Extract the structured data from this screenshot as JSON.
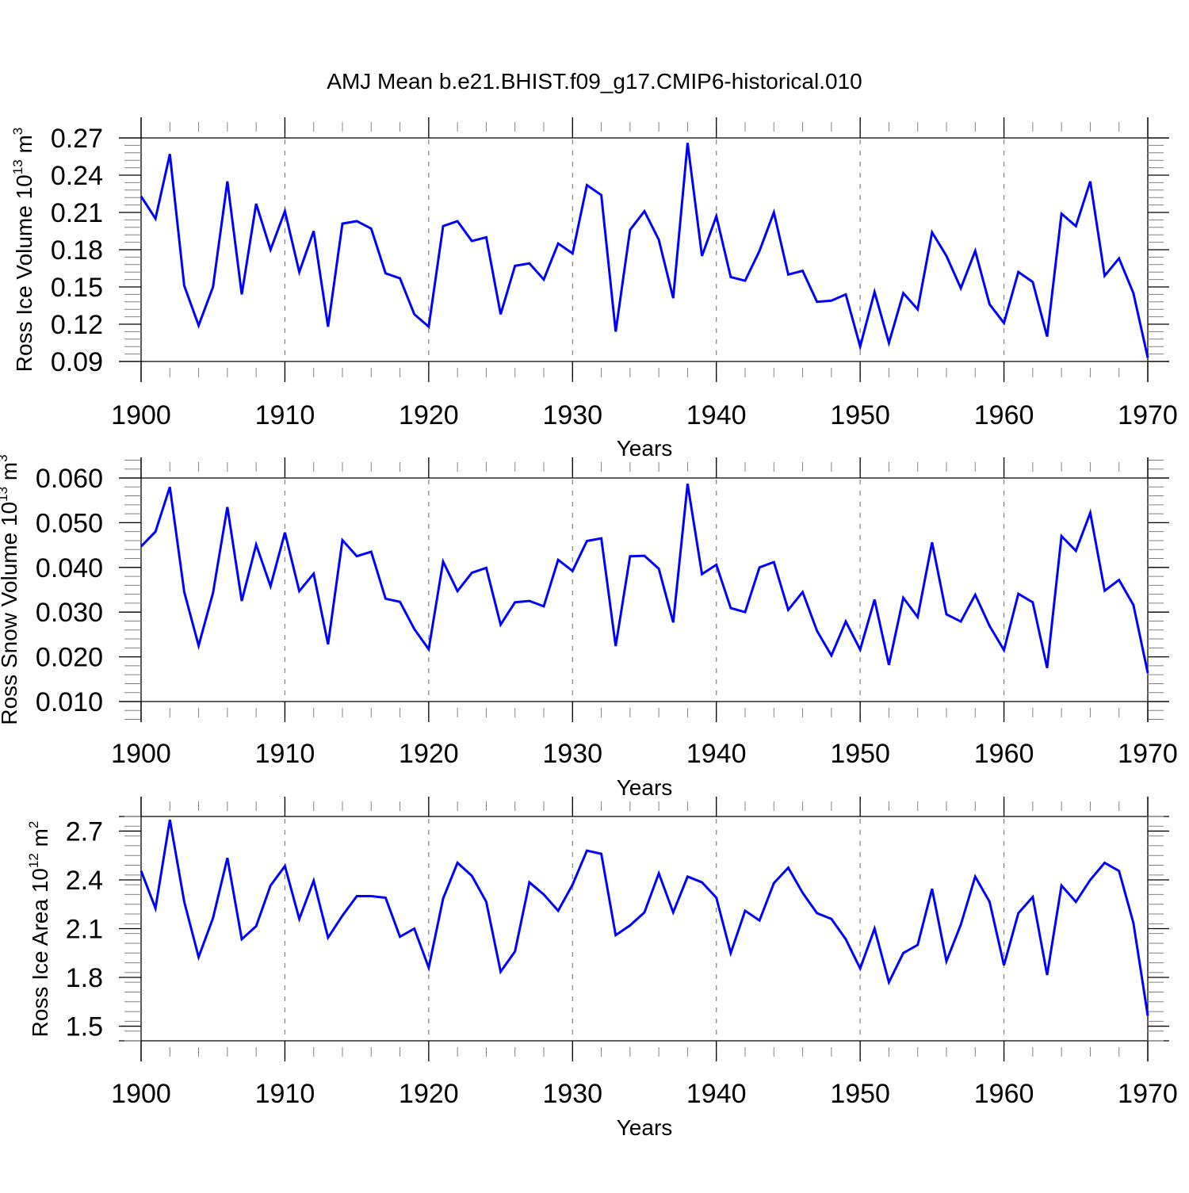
{
  "title": "AMJ Mean b.e21.BHIST.f09_g17.CMIP6-historical.010",
  "colors": {
    "line": "#0000ff",
    "axis": "#000000",
    "grid": "#808080"
  },
  "chart_data": [
    {
      "type": "line",
      "title": "AMJ Mean b.e21.BHIST.f09_g17.CMIP6-historical.010",
      "xlabel": "Years",
      "ylabel": "Ross Ice Volume 10",
      "ylabel_exponent": "13",
      "ylabel_unit": "m",
      "ylabel_unit_exponent": "3",
      "xlim": [
        1900,
        1970
      ],
      "ylim": [
        0.09,
        0.27
      ],
      "top_line": 0.27,
      "bottom_line": 0.09,
      "yticks": [
        0.09,
        0.12,
        0.15,
        0.18,
        0.21,
        0.24,
        0.27
      ],
      "ytick_labels": [
        "0.09",
        "0.12",
        "0.15",
        "0.18",
        "0.21",
        "0.24",
        "0.27"
      ],
      "yminor_step": 0.006,
      "xticks": [
        1900,
        1910,
        1920,
        1930,
        1940,
        1950,
        1960,
        1970
      ],
      "xtick_labels": [
        "1900",
        "1910",
        "1920",
        "1930",
        "1940",
        "1950",
        "1960",
        "1970"
      ],
      "grid_x": [
        1910,
        1920,
        1930,
        1940,
        1950,
        1960
      ],
      "series": [
        {
          "name": "Ross Ice Volume",
          "x": [
            1900,
            1901,
            1902,
            1903,
            1904,
            1905,
            1906,
            1907,
            1908,
            1909,
            1910,
            1911,
            1912,
            1913,
            1914,
            1915,
            1916,
            1917,
            1918,
            1919,
            1920,
            1921,
            1922,
            1923,
            1924,
            1925,
            1926,
            1927,
            1928,
            1929,
            1930,
            1931,
            1932,
            1933,
            1934,
            1935,
            1936,
            1937,
            1938,
            1939,
            1940,
            1941,
            1942,
            1943,
            1944,
            1945,
            1946,
            1947,
            1948,
            1949,
            1950,
            1951,
            1952,
            1953,
            1954,
            1955,
            1956,
            1957,
            1958,
            1959,
            1960,
            1961,
            1962,
            1963,
            1964,
            1965,
            1966,
            1967,
            1968,
            1969,
            1970
          ],
          "values": [
            0.223,
            0.205,
            0.257,
            0.151,
            0.119,
            0.15,
            0.235,
            0.144,
            0.217,
            0.18,
            0.211,
            0.162,
            0.195,
            0.118,
            0.201,
            0.203,
            0.197,
            0.161,
            0.157,
            0.128,
            0.118,
            0.199,
            0.203,
            0.187,
            0.19,
            0.128,
            0.167,
            0.169,
            0.156,
            0.185,
            0.177,
            0.232,
            0.224,
            0.114,
            0.196,
            0.211,
            0.188,
            0.141,
            0.266,
            0.175,
            0.207,
            0.158,
            0.155,
            0.179,
            0.21,
            0.16,
            0.163,
            0.138,
            0.139,
            0.144,
            0.102,
            0.146,
            0.105,
            0.145,
            0.132,
            0.194,
            0.175,
            0.149,
            0.179,
            0.136,
            0.121,
            0.162,
            0.154,
            0.11,
            0.209,
            0.199,
            0.235,
            0.159,
            0.173,
            0.145,
            0.093
          ]
        }
      ]
    },
    {
      "type": "line",
      "xlabel": "Years",
      "ylabel": "Ross Snow Volume 10",
      "ylabel_exponent": "13",
      "ylabel_unit": "m",
      "ylabel_unit_exponent": "3",
      "xlim": [
        1900,
        1970
      ],
      "ylim": [
        0.005,
        0.065
      ],
      "top_line": 0.06,
      "bottom_line": 0.01,
      "yticks": [
        0.01,
        0.02,
        0.03,
        0.04,
        0.05,
        0.06
      ],
      "ytick_labels": [
        "0.010",
        "0.020",
        "0.030",
        "0.040",
        "0.050",
        "0.060"
      ],
      "yminor_step": 0.002,
      "xticks": [
        1900,
        1910,
        1920,
        1930,
        1940,
        1950,
        1960,
        1970
      ],
      "xtick_labels": [
        "1900",
        "1910",
        "1920",
        "1930",
        "1940",
        "1950",
        "1960",
        "1970"
      ],
      "grid_x": [
        1910,
        1920,
        1930,
        1940,
        1950,
        1960
      ],
      "series": [
        {
          "name": "Ross Snow Volume",
          "x": [
            1900,
            1901,
            1902,
            1903,
            1904,
            1905,
            1906,
            1907,
            1908,
            1909,
            1910,
            1911,
            1912,
            1913,
            1914,
            1915,
            1916,
            1917,
            1918,
            1919,
            1920,
            1921,
            1922,
            1923,
            1924,
            1925,
            1926,
            1927,
            1928,
            1929,
            1930,
            1931,
            1932,
            1933,
            1934,
            1935,
            1936,
            1937,
            1938,
            1939,
            1940,
            1941,
            1942,
            1943,
            1944,
            1945,
            1946,
            1947,
            1948,
            1949,
            1950,
            1951,
            1952,
            1953,
            1954,
            1955,
            1956,
            1957,
            1958,
            1959,
            1960,
            1961,
            1962,
            1963,
            1964,
            1965,
            1966,
            1967,
            1968,
            1969,
            1970
          ],
          "values": [
            0.0447,
            0.048,
            0.058,
            0.0345,
            0.0225,
            0.0343,
            0.0535,
            0.0325,
            0.0451,
            0.0358,
            0.0478,
            0.0347,
            0.0386,
            0.0228,
            0.0461,
            0.0425,
            0.0435,
            0.033,
            0.0323,
            0.0262,
            0.0217,
            0.0413,
            0.0347,
            0.0388,
            0.0399,
            0.0272,
            0.0322,
            0.0325,
            0.0313,
            0.0417,
            0.0392,
            0.0459,
            0.0465,
            0.0224,
            0.0425,
            0.0426,
            0.0397,
            0.0277,
            0.0587,
            0.0385,
            0.0406,
            0.0309,
            0.03,
            0.04,
            0.0412,
            0.0305,
            0.0345,
            0.0258,
            0.0203,
            0.0279,
            0.0216,
            0.0328,
            0.0182,
            0.0332,
            0.0289,
            0.0456,
            0.0295,
            0.0279,
            0.0339,
            0.0269,
            0.0215,
            0.0341,
            0.0322,
            0.0175,
            0.047,
            0.0437,
            0.0522,
            0.0348,
            0.0372,
            0.0316,
            0.0164
          ]
        }
      ]
    },
    {
      "type": "line",
      "xlabel": "Years",
      "ylabel": "Ross Ice Area 10",
      "ylabel_exponent": "12",
      "ylabel_unit": "m",
      "ylabel_unit_exponent": "2",
      "xlim": [
        1900,
        1970
      ],
      "ylim": [
        1.41,
        2.79
      ],
      "top_line": 2.79,
      "bottom_line": 1.41,
      "yticks": [
        1.5,
        1.8,
        2.1,
        2.4,
        2.7
      ],
      "ytick_labels": [
        "1.5",
        "1.8",
        "2.1",
        "2.4",
        "2.7"
      ],
      "yminor_step": 0.06,
      "xticks": [
        1900,
        1910,
        1920,
        1930,
        1940,
        1950,
        1960,
        1970
      ],
      "xtick_labels": [
        "1900",
        "1910",
        "1920",
        "1930",
        "1940",
        "1950",
        "1960",
        "1970"
      ],
      "grid_x": [
        1910,
        1920,
        1930,
        1940,
        1950,
        1960
      ],
      "series": [
        {
          "name": "Ross Ice Area",
          "x": [
            1900,
            1901,
            1902,
            1903,
            1904,
            1905,
            1906,
            1907,
            1908,
            1909,
            1910,
            1911,
            1912,
            1913,
            1914,
            1915,
            1916,
            1917,
            1918,
            1919,
            1920,
            1921,
            1922,
            1923,
            1924,
            1925,
            1926,
            1927,
            1928,
            1929,
            1930,
            1931,
            1932,
            1933,
            1934,
            1935,
            1936,
            1937,
            1938,
            1939,
            1940,
            1941,
            1942,
            1943,
            1944,
            1945,
            1946,
            1947,
            1948,
            1949,
            1950,
            1951,
            1952,
            1953,
            1954,
            1955,
            1956,
            1957,
            1958,
            1959,
            1960,
            1961,
            1962,
            1963,
            1964,
            1965,
            1966,
            1967,
            1968,
            1969,
            1970
          ],
          "values": [
            2.455,
            2.225,
            2.77,
            2.265,
            1.925,
            2.165,
            2.535,
            2.035,
            2.115,
            2.365,
            2.485,
            2.16,
            2.395,
            2.045,
            2.18,
            2.3,
            2.3,
            2.29,
            2.05,
            2.1,
            1.86,
            2.285,
            2.505,
            2.425,
            2.265,
            1.835,
            1.96,
            2.385,
            2.31,
            2.21,
            2.37,
            2.58,
            2.56,
            2.06,
            2.12,
            2.2,
            2.44,
            2.2,
            2.42,
            2.385,
            2.29,
            1.95,
            2.21,
            2.15,
            2.38,
            2.475,
            2.32,
            2.195,
            2.16,
            2.035,
            1.855,
            2.1,
            1.77,
            1.95,
            2.0,
            2.345,
            1.9,
            2.125,
            2.42,
            2.265,
            1.875,
            2.195,
            2.295,
            1.815,
            2.365,
            2.265,
            2.4,
            2.505,
            2.455,
            2.135,
            1.565
          ]
        }
      ]
    }
  ]
}
